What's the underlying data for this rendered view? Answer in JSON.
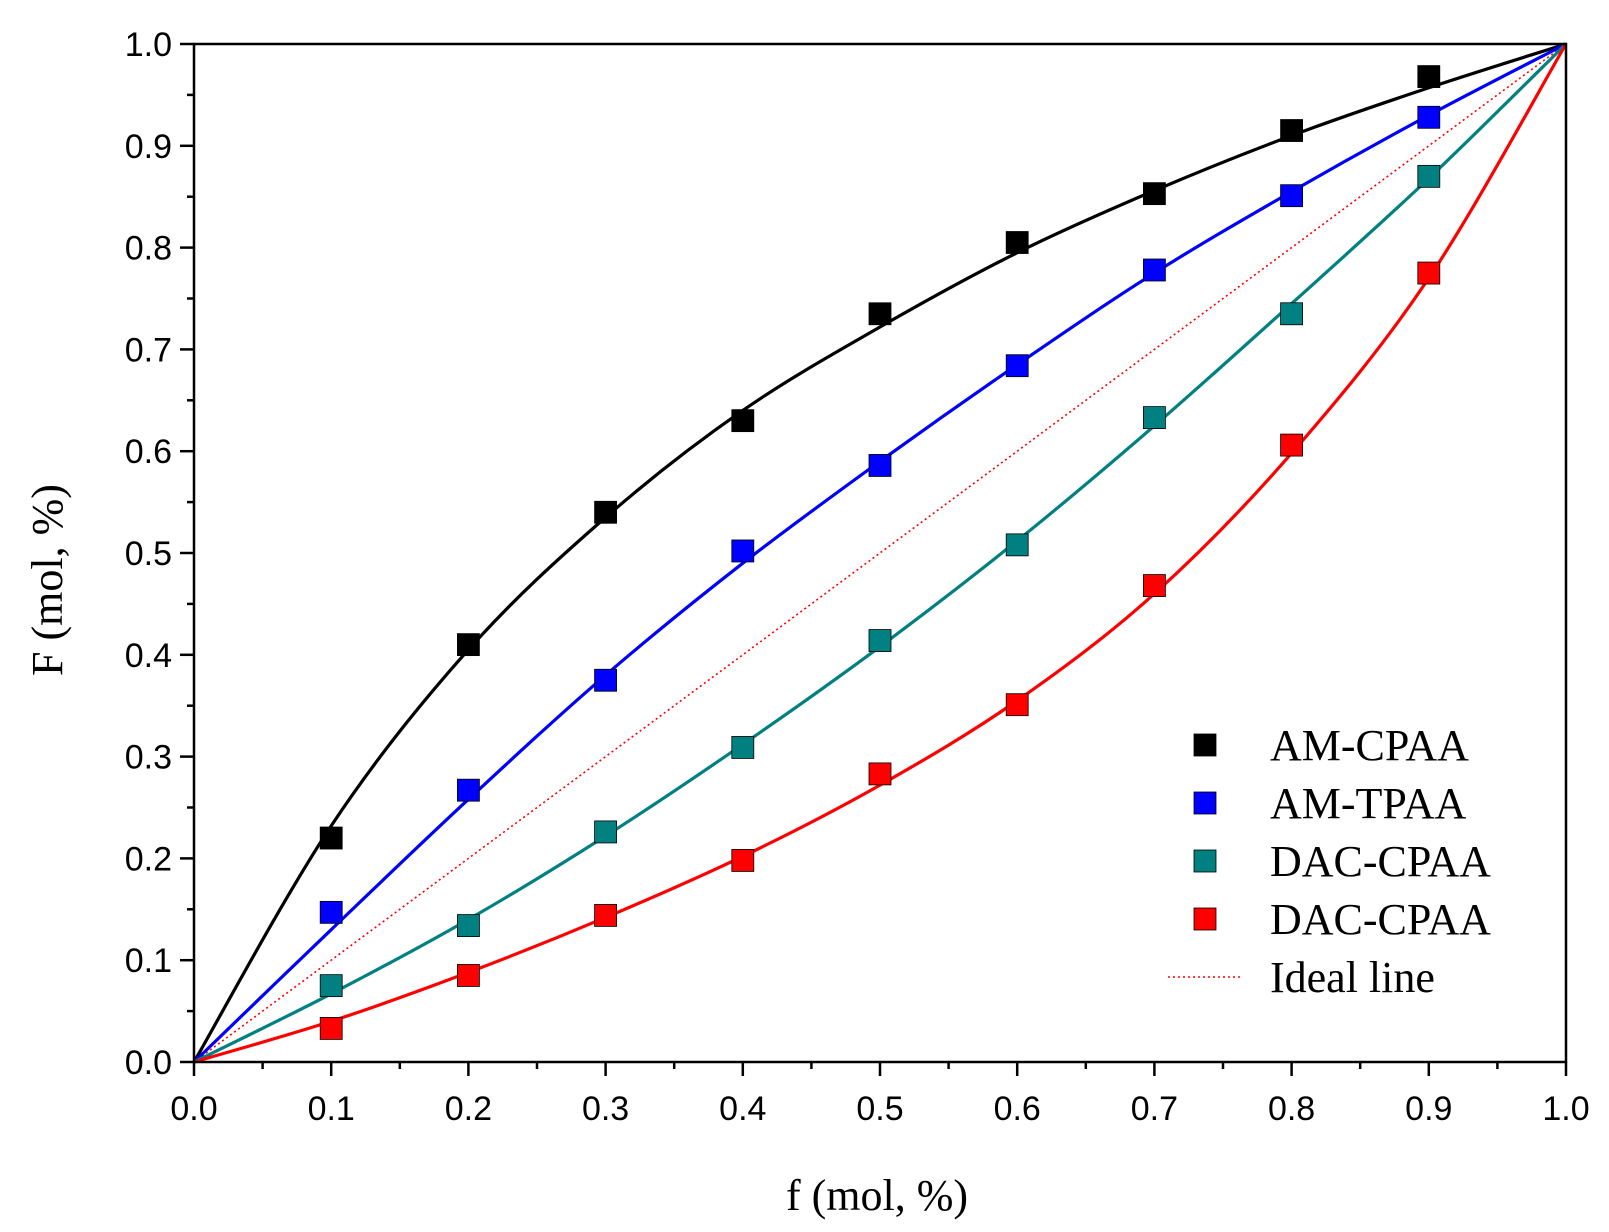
{
  "chart_data": {
    "type": "scatter",
    "title": "",
    "xlabel": "f (mol, %)",
    "ylabel": "F (mol, %)",
    "xlim": [
      0.0,
      1.0
    ],
    "ylim": [
      0.0,
      1.0
    ],
    "xticks": [
      "0.0",
      "0.1",
      "0.2",
      "0.3",
      "0.4",
      "0.5",
      "0.6",
      "0.7",
      "0.8",
      "0.9",
      "1.0"
    ],
    "yticks": [
      "0.0",
      "0.1",
      "0.2",
      "0.3",
      "0.4",
      "0.5",
      "0.6",
      "0.7",
      "0.8",
      "0.9",
      "1.0"
    ],
    "legend_position": "bottom-right",
    "x": [
      0.1,
      0.2,
      0.3,
      0.4,
      0.5,
      0.6,
      0.7,
      0.8,
      0.9
    ],
    "series": [
      {
        "name": "AM-CPAA",
        "color": "#000000",
        "marker": "square",
        "values": [
          0.22,
          0.41,
          0.54,
          0.63,
          0.735,
          0.805,
          0.853,
          0.915,
          0.968
        ],
        "fit": [
          [
            0,
            0
          ],
          [
            0.1,
            0.232
          ],
          [
            0.2,
            0.405
          ],
          [
            0.3,
            0.535
          ],
          [
            0.4,
            0.64
          ],
          [
            0.5,
            0.722
          ],
          [
            0.6,
            0.795
          ],
          [
            0.7,
            0.856
          ],
          [
            0.8,
            0.91
          ],
          [
            0.9,
            0.957
          ],
          [
            1.0,
            1.0
          ]
        ]
      },
      {
        "name": "AM-TPAA",
        "color": "#0000ff",
        "marker": "square",
        "values": [
          0.147,
          0.267,
          0.375,
          0.502,
          0.586,
          0.684,
          0.778,
          0.851,
          0.928
        ],
        "fit": [
          [
            0,
            0
          ],
          [
            0.1,
            0.13
          ],
          [
            0.2,
            0.258
          ],
          [
            0.3,
            0.38
          ],
          [
            0.4,
            0.49
          ],
          [
            0.5,
            0.59
          ],
          [
            0.6,
            0.685
          ],
          [
            0.7,
            0.775
          ],
          [
            0.8,
            0.855
          ],
          [
            0.9,
            0.93
          ],
          [
            1.0,
            1.0
          ]
        ]
      },
      {
        "name": "DAC-CPAA",
        "color": "#008080",
        "marker": "square",
        "values": [
          0.075,
          0.134,
          0.226,
          0.309,
          0.414,
          0.508,
          0.633,
          0.735,
          0.87
        ],
        "fit": [
          [
            0,
            0
          ],
          [
            0.1,
            0.067
          ],
          [
            0.2,
            0.14
          ],
          [
            0.3,
            0.222
          ],
          [
            0.4,
            0.312
          ],
          [
            0.5,
            0.408
          ],
          [
            0.6,
            0.512
          ],
          [
            0.7,
            0.625
          ],
          [
            0.8,
            0.745
          ],
          [
            0.9,
            0.868
          ],
          [
            1.0,
            1.0
          ]
        ]
      },
      {
        "name": "DAC-CPAA",
        "color": "#ff0000",
        "marker": "square",
        "values": [
          0.033,
          0.085,
          0.144,
          0.198,
          0.283,
          0.351,
          0.468,
          0.606,
          0.775
        ],
        "fit": [
          [
            0,
            0
          ],
          [
            0.1,
            0.04
          ],
          [
            0.2,
            0.088
          ],
          [
            0.3,
            0.142
          ],
          [
            0.4,
            0.202
          ],
          [
            0.5,
            0.272
          ],
          [
            0.6,
            0.355
          ],
          [
            0.7,
            0.46
          ],
          [
            0.8,
            0.598
          ],
          [
            0.9,
            0.77
          ],
          [
            1.0,
            1.0
          ]
        ]
      }
    ],
    "ideal_line": {
      "name": "Ideal line",
      "color": "#ff0000",
      "style": "dotted",
      "points": [
        [
          0,
          0
        ],
        [
          1,
          1
        ]
      ]
    }
  }
}
